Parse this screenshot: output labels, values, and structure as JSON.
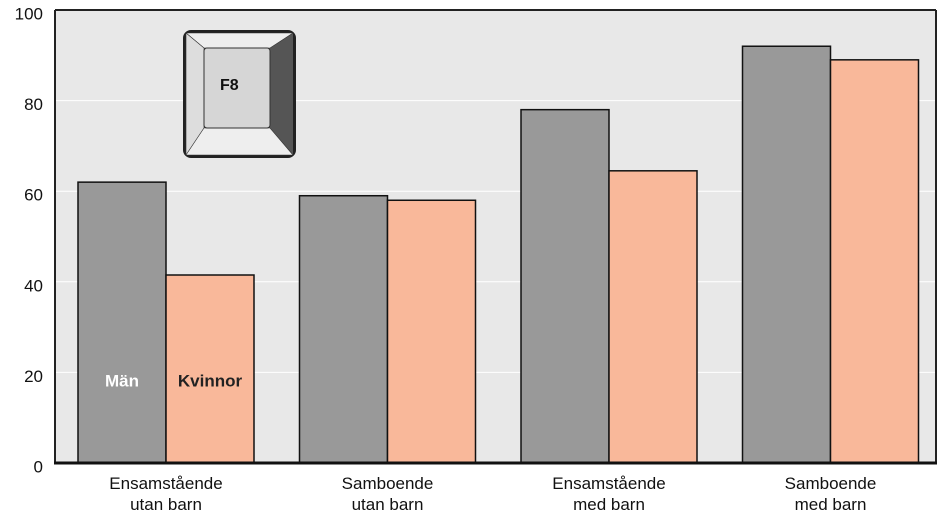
{
  "chart_data": {
    "type": "bar",
    "categories": [
      "Ensamstående\nutan barn",
      "Samboende\nutan barn",
      "Ensamstående\nmed barn",
      "Samboende\nmed barn"
    ],
    "series": [
      {
        "name": "Män",
        "color": "#999999",
        "values": [
          62,
          59,
          78,
          92
        ]
      },
      {
        "name": "Kvinnor",
        "color": "#f9b89a",
        "values": [
          41.5,
          58,
          64.5,
          89
        ]
      }
    ],
    "ylim": [
      0,
      100
    ],
    "yticks": [
      0,
      20,
      40,
      60,
      80,
      100
    ],
    "grid": true,
    "annotation": "F8"
  }
}
